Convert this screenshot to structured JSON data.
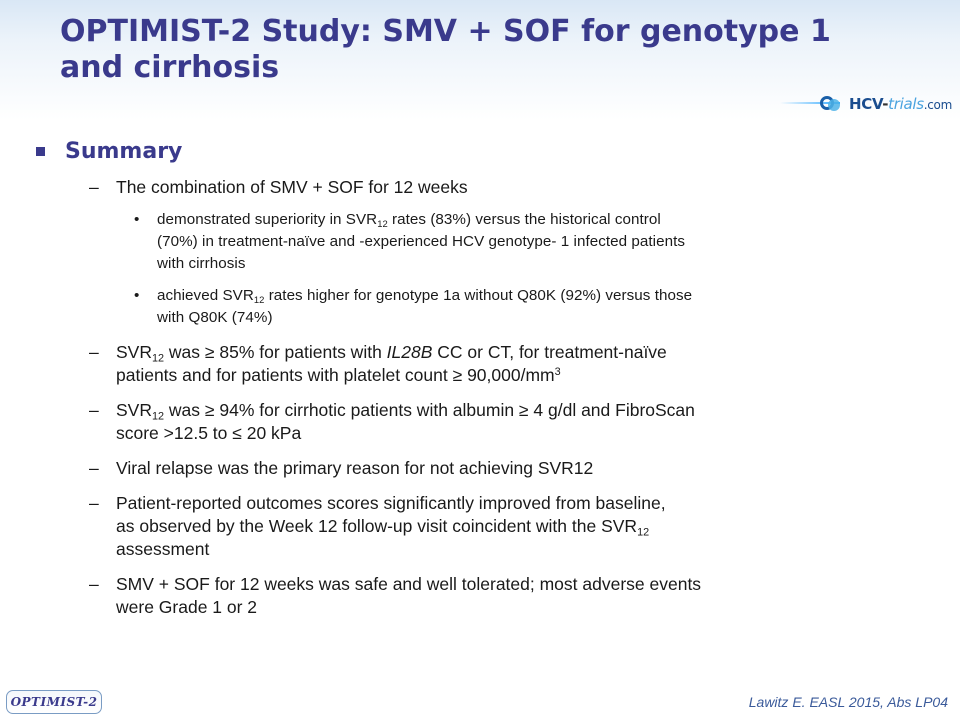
{
  "title": {
    "line1": "OPTIMIST-2 Study: SMV + SOF for genotype 1",
    "line2": "and cirrhosis"
  },
  "logo": {
    "text_a": "HCV",
    "text_b": "-",
    "text_c": "trials",
    "text_d": ".com"
  },
  "summary": {
    "heading": "Summary"
  },
  "items": [
    {
      "dash": "–",
      "text": "The combination of SMV + SOF for 12 weeks"
    },
    {
      "dash": "–",
      "pre": "SVR",
      "sub": "12",
      "a": " was ≥ 85% for patients with ",
      "em": "IL28B",
      "b": " CC or CT, for treatment-naïve",
      "line2": "patients and for patients with platelet count ≥ 90,000/mm",
      "sup": "3"
    },
    {
      "dash": "–",
      "pre": "SVR",
      "sub": "12",
      "a": " was ≥ 94% for cirrhotic patients with albumin ≥ 4 g/dl and FibroScan",
      "line2": "score >12.5 to ≤ 20 kPa"
    },
    {
      "dash": "–",
      "text": "Viral relapse was the primary reason for not achieving SVR12"
    },
    {
      "dash": "–",
      "line1": "Patient-reported outcomes scores significantly improved from baseline,",
      "line2": "as observed by the Week 12 follow-up visit coincident with the SVR",
      "sub": "12",
      "line3": "assessment"
    },
    {
      "dash": "–",
      "line1": "SMV + SOF for 12 weeks was safe and well tolerated; most adverse events",
      "line2": "were Grade 1 or 2"
    }
  ],
  "bullets": [
    {
      "dot": "•",
      "a": "demonstrated superiority in SVR",
      "sub": "12",
      "b": " rates (83%) versus the historical control",
      "line2": "(70%) in treatment-naïve and -experienced HCV genotype- 1 infected patients",
      "line3": "with cirrhosis"
    },
    {
      "dot": "•",
      "a": "achieved SVR",
      "sub": "12",
      "b": " rates higher for genotype 1a without Q80K (92%) versus those",
      "line2": "with Q80K (74%)"
    }
  ],
  "footer": {
    "badge": "OPTIMIST-2",
    "citation": "Lawitz E. EASL 2015, Abs LP04"
  },
  "colors": {
    "title": "#3a3a8c",
    "body_text": "#1a1a1a",
    "citation": "#3a5a9a"
  }
}
